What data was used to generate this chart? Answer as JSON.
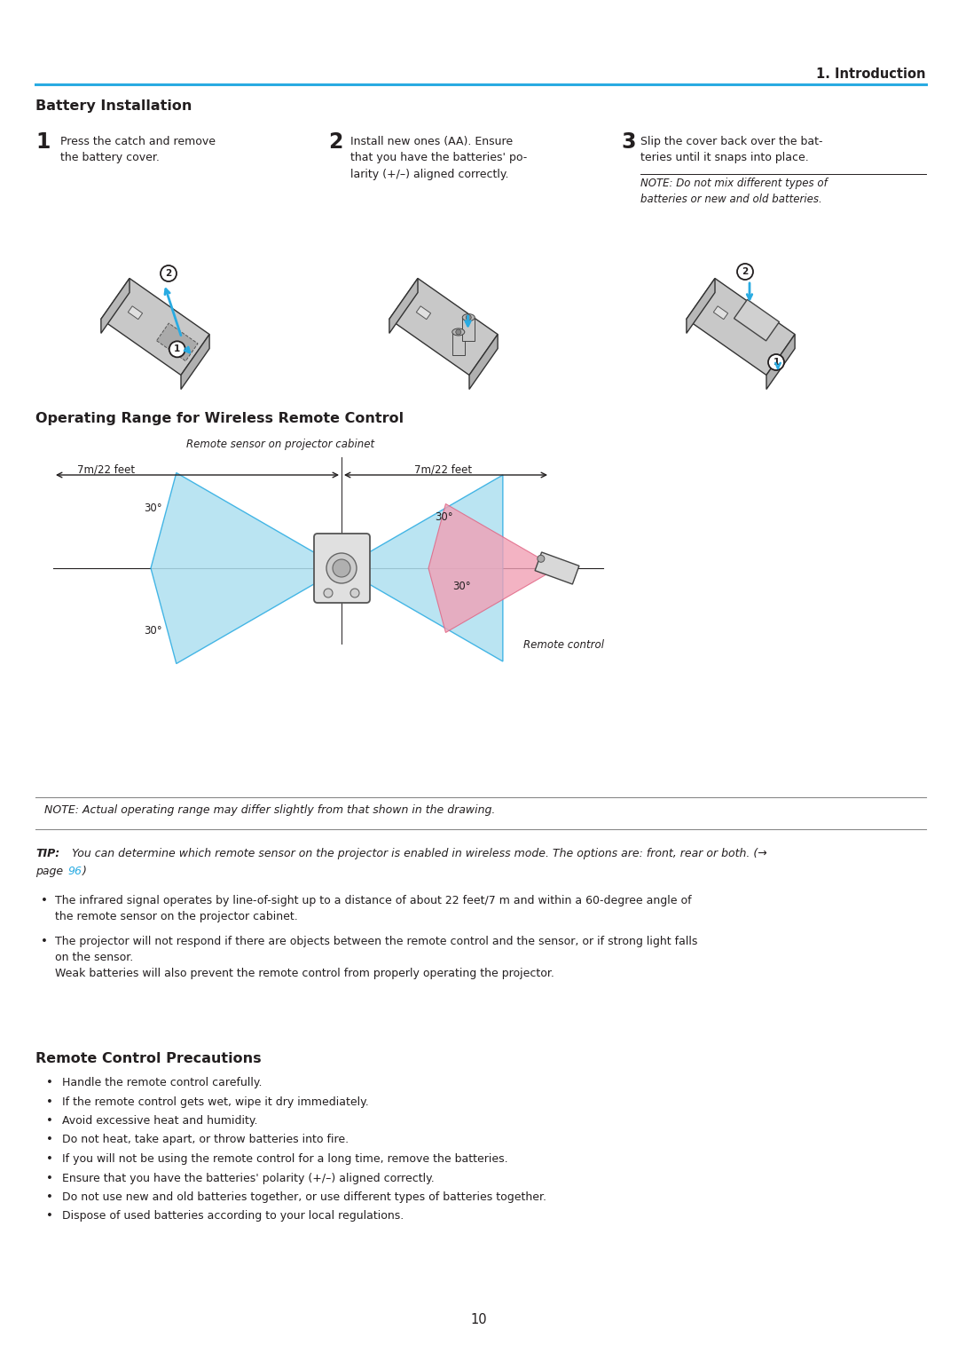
{
  "page_number": "10",
  "header_text": "1. Introduction",
  "header_line_color": "#29ABE2",
  "bg_color": "#ffffff",
  "text_color": "#231F20",
  "blue_color": "#29ABE2",
  "pink_color": "#F5A0B0",
  "section1_title": "Battery Installation",
  "step1_num": "1",
  "step1_text": "Press the catch and remove\nthe battery cover.",
  "step2_num": "2",
  "step2_text": "Install new ones (AA). Ensure\nthat you have the batteries' po-\nlarity (+/–) aligned correctly.",
  "step3_num": "3",
  "step3_text": "Slip the cover back over the bat-\nteries until it snaps into place.",
  "step3_note": "NOTE: Do not mix different types of\nbatteries or new and old batteries.",
  "section2_title": "Operating Range for Wireless Remote Control",
  "diagram_caption": "Remote sensor on projector cabinet",
  "label_7m_left": "7m/22 feet",
  "label_7m_right": "7m/22 feet",
  "remote_label": "Remote control",
  "note_box_text": "NOTE: Actual operating range may differ slightly from that shown in the drawing.",
  "tip_bold": "TIP:",
  "tip_rest": " You can determine which remote sensor on the projector is enabled in wireless mode. The options are: front, rear or both. (→",
  "tip_page": "page ",
  "tip_page_ref": "96",
  "tip_close": ")",
  "bullet1": "The infrared signal operates by line-of-sight up to a distance of about 22 feet/7 m and within a 60-degree angle of\nthe remote sensor on the projector cabinet.",
  "bullet2": "The projector will not respond if there are objects between the remote control and the sensor, or if strong light falls\non the sensor.\nWeak batteries will also prevent the remote control from properly operating the projector.",
  "section3_title": "Remote Control Precautions",
  "precautions": [
    "Handle the remote control carefully.",
    "If the remote control gets wet, wipe it dry immediately.",
    "Avoid excessive heat and humidity.",
    "Do not heat, take apart, or throw batteries into fire.",
    "If you will not be using the remote control for a long time, remove the batteries.",
    "Ensure that you have the batteries' polarity (+/–) aligned correctly.",
    "Do not use new and old batteries together, or use different types of batteries together.",
    "Dispose of used batteries according to your local regulations."
  ]
}
